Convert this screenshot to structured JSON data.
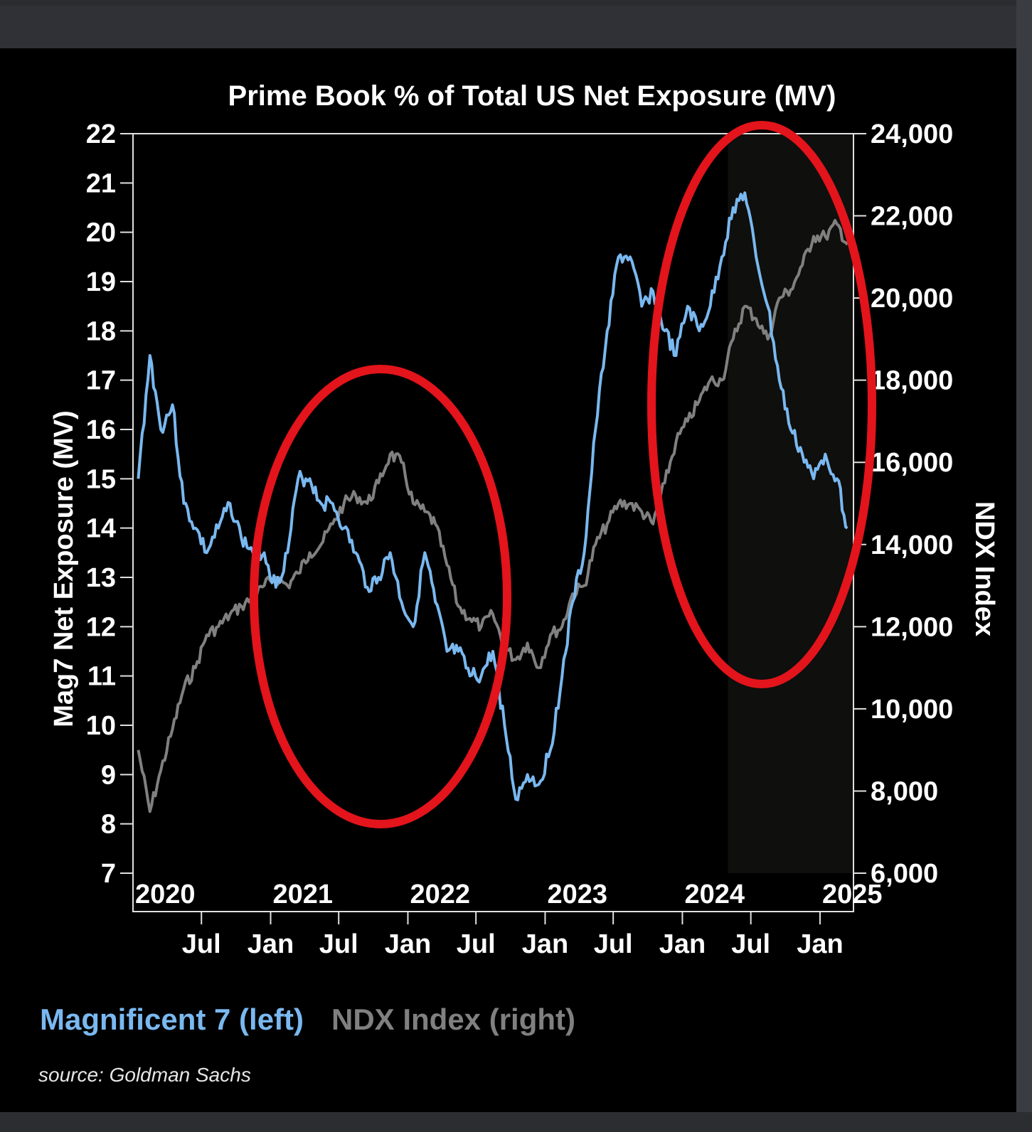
{
  "chart_data": {
    "type": "line",
    "title": "Prime Book % of Total US Net Exposure (MV)",
    "ylabel_left": "Mag7 Net Exposure (MV)",
    "ylabel_right": "NDX Index",
    "ylim_left": [
      7,
      22
    ],
    "ylim_right": [
      6000,
      24000
    ],
    "yticks_left": [
      "22",
      "21",
      "20",
      "19",
      "18",
      "17",
      "16",
      "15",
      "14",
      "13",
      "12",
      "11",
      "10",
      "9",
      "8",
      "7"
    ],
    "yticks_right": [
      "24,000",
      "22,000",
      "20,000",
      "18,000",
      "16,000",
      "14,000",
      "12,000",
      "10,000",
      "8,000",
      "6,000"
    ],
    "year_labels": [
      "2020",
      "2021",
      "2022",
      "2023",
      "2024",
      "2025"
    ],
    "month_labels": [
      "Jul",
      "Jan",
      "Jul",
      "Jan",
      "Jul",
      "Jan",
      "Jul",
      "Jan",
      "Jul",
      "Jan"
    ],
    "x_range": [
      "2020-01-01",
      "2025-03-31"
    ],
    "highlight_start": "2024-05-01",
    "series": [
      {
        "name": "Magnificent 7 (left)",
        "axis": "left",
        "color": "#7ab8f0",
        "dates": [
          "2020-01",
          "2020-02",
          "2020-03",
          "2020-04",
          "2020-05",
          "2020-06",
          "2020-07",
          "2020-08",
          "2020-09",
          "2020-10",
          "2020-11",
          "2020-12",
          "2021-01",
          "2021-02",
          "2021-03",
          "2021-04",
          "2021-05",
          "2021-06",
          "2021-07",
          "2021-08",
          "2021-09",
          "2021-10",
          "2021-11",
          "2021-12",
          "2022-01",
          "2022-02",
          "2022-03",
          "2022-04",
          "2022-05",
          "2022-06",
          "2022-07",
          "2022-08",
          "2022-09",
          "2022-10",
          "2022-11",
          "2022-12",
          "2023-01",
          "2023-02",
          "2023-03",
          "2023-04",
          "2023-05",
          "2023-06",
          "2023-07",
          "2023-08",
          "2023-09",
          "2023-10",
          "2023-11",
          "2023-12",
          "2024-01",
          "2024-02",
          "2024-03",
          "2024-04",
          "2024-05",
          "2024-06",
          "2024-07",
          "2024-08",
          "2024-09",
          "2024-10",
          "2024-11",
          "2024-12",
          "2025-01",
          "2025-02",
          "2025-03"
        ],
        "values": [
          15.0,
          17.5,
          16.0,
          16.5,
          14.5,
          14.0,
          13.5,
          14.0,
          14.5,
          13.8,
          13.5,
          13.5,
          12.8,
          13.5,
          15.0,
          15.0,
          14.5,
          14.5,
          14.0,
          13.5,
          12.8,
          13.0,
          13.5,
          12.5,
          12.0,
          13.5,
          12.5,
          11.5,
          11.5,
          11.0,
          11.0,
          11.5,
          10.0,
          8.5,
          9.0,
          8.8,
          9.5,
          11.0,
          12.5,
          13.5,
          16.0,
          18.0,
          19.5,
          19.5,
          18.5,
          18.8,
          18.0,
          17.5,
          18.5,
          18.0,
          18.5,
          19.5,
          20.5,
          20.8,
          19.5,
          18.5,
          17.0,
          16.0,
          15.5,
          15.0,
          15.5,
          15.0,
          14.0
        ]
      },
      {
        "name": "NDX Index (right)",
        "axis": "right",
        "color": "#808080",
        "dates": [
          "2020-01",
          "2020-02",
          "2020-03",
          "2020-04",
          "2020-05",
          "2020-06",
          "2020-07",
          "2020-08",
          "2020-09",
          "2020-10",
          "2020-11",
          "2020-12",
          "2021-01",
          "2021-02",
          "2021-03",
          "2021-04",
          "2021-05",
          "2021-06",
          "2021-07",
          "2021-08",
          "2021-09",
          "2021-10",
          "2021-11",
          "2021-12",
          "2022-01",
          "2022-02",
          "2022-03",
          "2022-04",
          "2022-05",
          "2022-06",
          "2022-07",
          "2022-08",
          "2022-09",
          "2022-10",
          "2022-11",
          "2022-12",
          "2023-01",
          "2023-02",
          "2023-03",
          "2023-04",
          "2023-05",
          "2023-06",
          "2023-07",
          "2023-08",
          "2023-09",
          "2023-10",
          "2023-11",
          "2023-12",
          "2024-01",
          "2024-02",
          "2024-03",
          "2024-04",
          "2024-05",
          "2024-06",
          "2024-07",
          "2024-08",
          "2024-09",
          "2024-10",
          "2024-11",
          "2024-12",
          "2025-01",
          "2025-02",
          "2025-03"
        ],
        "values": [
          9000,
          7500,
          8500,
          9500,
          10500,
          11000,
          11800,
          12000,
          12300,
          12500,
          12700,
          13000,
          13200,
          13000,
          13300,
          13800,
          14000,
          14500,
          15000,
          15200,
          15000,
          15500,
          16200,
          16000,
          15000,
          14800,
          14500,
          13500,
          12500,
          12200,
          12000,
          12300,
          11500,
          11200,
          11600,
          11000,
          11800,
          12000,
          12800,
          13000,
          14000,
          14500,
          15000,
          15000,
          14800,
          14500,
          15500,
          16500,
          17000,
          17500,
          18000,
          18000,
          19000,
          19800,
          19500,
          19000,
          20000,
          20200,
          20800,
          21500,
          21500,
          21800,
          21300
        ]
      }
    ]
  },
  "legend": {
    "mag7_label": "Magnificent 7 (left)",
    "ndx_label": "NDX Index (right)",
    "mag7_color": "#7ab8f0",
    "ndx_color": "#808080"
  },
  "source_note": "source: Goldman Sachs",
  "annotation_color": "#e3141b"
}
